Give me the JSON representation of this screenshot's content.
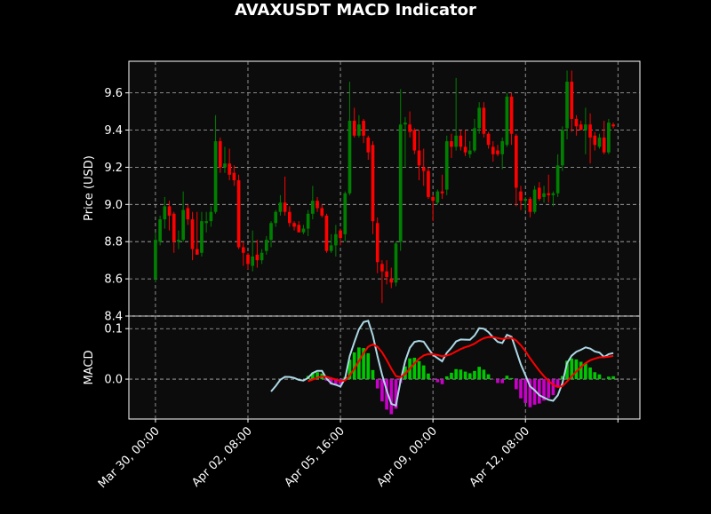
{
  "chart_data": [
    {
      "type": "candlestick",
      "title": "AVAXUSDT MACD Indicator",
      "ylabel": "Price (USD)",
      "ylim": [
        8.4,
        9.77
      ],
      "yticks": [
        "8.4",
        "8.6",
        "8.8",
        "9.0",
        "9.2",
        "9.4",
        "9.6"
      ],
      "grid": true,
      "colors": {
        "up": "#008000",
        "down": "#ff0000",
        "background": "#0c0c0c",
        "grid": "#b0b0b0"
      },
      "candles_columns": [
        "time",
        "open",
        "high",
        "low",
        "close"
      ],
      "candles": [
        [
          "03-30 00:00",
          8.6,
          8.85,
          8.58,
          8.81
        ],
        [
          "03-30 04:00",
          8.8,
          8.94,
          8.78,
          8.92
        ],
        [
          "03-30 08:00",
          8.92,
          9.04,
          8.87,
          8.99
        ],
        [
          "03-30 12:00",
          8.99,
          9.02,
          8.86,
          8.94
        ],
        [
          "03-30 16:00",
          8.95,
          8.96,
          8.74,
          8.8
        ],
        [
          "03-30 20:00",
          8.8,
          8.86,
          8.76,
          8.81
        ],
        [
          "03-31 00:00",
          8.81,
          9.07,
          8.8,
          8.97
        ],
        [
          "03-31 04:00",
          8.98,
          9.0,
          8.89,
          8.92
        ],
        [
          "03-31 08:00",
          8.92,
          8.96,
          8.7,
          8.76
        ],
        [
          "03-31 12:00",
          8.76,
          8.96,
          8.73,
          8.73
        ],
        [
          "03-31 16:00",
          8.74,
          8.96,
          8.72,
          8.91
        ],
        [
          "03-31 20:00",
          8.9,
          8.96,
          8.85,
          8.91
        ],
        [
          "04-01 00:00",
          8.91,
          8.99,
          8.88,
          8.96
        ],
        [
          "04-01 04:00",
          8.96,
          9.48,
          8.95,
          9.34
        ],
        [
          "04-01 08:00",
          9.34,
          9.36,
          9.17,
          9.2
        ],
        [
          "04-01 12:00",
          9.2,
          9.31,
          9.17,
          9.22
        ],
        [
          "04-01 16:00",
          9.22,
          9.3,
          9.13,
          9.16
        ],
        [
          "04-01 20:00",
          9.17,
          9.21,
          9.1,
          9.13
        ],
        [
          "04-02 00:00",
          9.13,
          9.16,
          8.76,
          8.77
        ],
        [
          "04-02 04:00",
          8.77,
          8.8,
          8.67,
          8.74
        ],
        [
          "04-02 08:00",
          8.73,
          8.74,
          8.65,
          8.68
        ],
        [
          "04-02 12:00",
          8.67,
          8.86,
          8.64,
          8.72
        ],
        [
          "04-02 16:00",
          8.73,
          8.81,
          8.66,
          8.7
        ],
        [
          "04-02 20:00",
          8.7,
          8.76,
          8.68,
          8.74
        ],
        [
          "04-03 00:00",
          8.75,
          8.83,
          8.73,
          8.81
        ],
        [
          "04-03 04:00",
          8.81,
          8.91,
          8.77,
          8.9
        ],
        [
          "04-03 08:00",
          8.9,
          8.97,
          8.88,
          8.96
        ],
        [
          "04-03 12:00",
          8.96,
          9.05,
          8.94,
          9.01
        ],
        [
          "04-03 16:00",
          9.01,
          9.15,
          8.94,
          8.96
        ],
        [
          "04-03 20:00",
          8.96,
          8.99,
          8.88,
          8.9
        ],
        [
          "04-04 00:00",
          8.9,
          8.91,
          8.86,
          8.88
        ],
        [
          "04-04 04:00",
          8.89,
          8.91,
          8.85,
          8.85
        ],
        [
          "04-04 08:00",
          8.85,
          8.89,
          8.84,
          8.87
        ],
        [
          "04-04 12:00",
          8.87,
          8.97,
          8.83,
          8.95
        ],
        [
          "04-04 16:00",
          8.95,
          9.1,
          8.92,
          9.02
        ],
        [
          "04-04 20:00",
          9.02,
          9.04,
          8.96,
          8.98
        ],
        [
          "04-05 00:00",
          8.98,
          9.0,
          8.93,
          8.94
        ],
        [
          "04-05 04:00",
          8.94,
          8.95,
          8.74,
          8.75
        ],
        [
          "04-05 08:00",
          8.75,
          8.84,
          8.74,
          8.78
        ],
        [
          "04-05 12:00",
          8.78,
          8.89,
          8.72,
          8.84
        ],
        [
          "04-05 16:00",
          8.86,
          8.87,
          8.78,
          8.82
        ],
        [
          "04-05 20:00",
          8.84,
          9.07,
          8.8,
          9.06
        ],
        [
          "04-06 00:00",
          9.06,
          9.66,
          9.05,
          9.45
        ],
        [
          "04-06 04:00",
          9.45,
          9.52,
          9.36,
          9.37
        ],
        [
          "04-06 08:00",
          9.37,
          9.48,
          9.36,
          9.43
        ],
        [
          "04-06 12:00",
          9.45,
          9.46,
          9.33,
          9.37
        ],
        [
          "04-06 16:00",
          9.36,
          9.37,
          9.24,
          9.28
        ],
        [
          "04-06 20:00",
          9.32,
          9.34,
          8.84,
          8.91
        ],
        [
          "04-07 00:00",
          8.9,
          8.93,
          8.63,
          8.69
        ],
        [
          "04-07 04:00",
          8.68,
          8.7,
          8.47,
          8.64
        ],
        [
          "04-07 08:00",
          8.64,
          8.7,
          8.57,
          8.61
        ],
        [
          "04-07 12:00",
          8.6,
          8.66,
          8.55,
          8.58
        ],
        [
          "04-07 16:00",
          8.58,
          8.8,
          8.56,
          8.79
        ],
        [
          "04-07 20:00",
          8.8,
          9.62,
          8.75,
          9.43
        ],
        [
          "04-08 00:00",
          9.43,
          9.47,
          9.2,
          9.44
        ],
        [
          "04-08 04:00",
          9.43,
          9.5,
          9.36,
          9.39
        ],
        [
          "04-08 08:00",
          9.4,
          9.41,
          9.27,
          9.29
        ],
        [
          "04-08 12:00",
          9.29,
          9.4,
          9.13,
          9.21
        ],
        [
          "04-08 16:00",
          9.2,
          9.3,
          9.1,
          9.18
        ],
        [
          "04-08 20:00",
          9.18,
          9.2,
          9.03,
          9.04
        ],
        [
          "04-09 00:00",
          9.04,
          9.05,
          8.91,
          9.02
        ],
        [
          "04-09 04:00",
          9.01,
          9.08,
          9.0,
          9.07
        ],
        [
          "04-09 08:00",
          9.07,
          9.16,
          9.03,
          9.06
        ],
        [
          "04-09 12:00",
          9.08,
          9.37,
          9.05,
          9.34
        ],
        [
          "04-09 16:00",
          9.34,
          9.38,
          9.25,
          9.31
        ],
        [
          "04-09 20:00",
          9.31,
          9.68,
          9.29,
          9.37
        ],
        [
          "04-10 00:00",
          9.37,
          9.4,
          9.29,
          9.31
        ],
        [
          "04-10 04:00",
          9.31,
          9.4,
          9.26,
          9.28
        ],
        [
          "04-10 08:00",
          9.27,
          9.34,
          9.25,
          9.29
        ],
        [
          "04-10 12:00",
          9.29,
          9.46,
          9.28,
          9.41
        ],
        [
          "04-10 16:00",
          9.41,
          9.55,
          9.38,
          9.52
        ],
        [
          "04-10 20:00",
          9.52,
          9.55,
          9.36,
          9.38
        ],
        [
          "04-11 00:00",
          9.38,
          9.39,
          9.3,
          9.32
        ],
        [
          "04-11 04:00",
          9.31,
          9.34,
          9.23,
          9.27
        ],
        [
          "04-11 08:00",
          9.29,
          9.32,
          9.26,
          9.27
        ],
        [
          "04-11 12:00",
          9.27,
          9.36,
          9.19,
          9.34
        ],
        [
          "04-11 16:00",
          9.32,
          9.6,
          9.31,
          9.58
        ],
        [
          "04-11 20:00",
          9.58,
          9.6,
          9.32,
          9.38
        ],
        [
          "04-12 00:00",
          9.37,
          9.38,
          8.99,
          9.09
        ],
        [
          "04-12 04:00",
          9.07,
          9.1,
          8.97,
          9.02
        ],
        [
          "04-12 08:00",
          9.02,
          9.04,
          8.97,
          9.03
        ],
        [
          "04-12 12:00",
          9.03,
          9.04,
          8.93,
          8.96
        ],
        [
          "04-12 16:00",
          8.96,
          9.1,
          8.95,
          9.08
        ],
        [
          "04-12 20:00",
          9.09,
          9.12,
          9.02,
          9.03
        ],
        [
          "04-13 00:00",
          9.04,
          9.1,
          9.01,
          9.06
        ],
        [
          "04-13 04:00",
          9.06,
          9.16,
          9.01,
          9.05
        ],
        [
          "04-13 08:00",
          9.05,
          9.07,
          8.99,
          9.06
        ],
        [
          "04-13 12:00",
          9.06,
          9.27,
          9.04,
          9.21
        ],
        [
          "04-13 16:00",
          9.21,
          9.42,
          9.18,
          9.4
        ],
        [
          "04-13 20:00",
          9.41,
          9.72,
          9.35,
          9.66
        ],
        [
          "04-14 00:00",
          9.66,
          9.72,
          9.39,
          9.46
        ],
        [
          "04-14 04:00",
          9.46,
          9.48,
          9.37,
          9.42
        ],
        [
          "04-14 08:00",
          9.43,
          9.45,
          9.4,
          9.4
        ],
        [
          "04-14 12:00",
          9.4,
          9.52,
          9.27,
          9.43
        ],
        [
          "04-14 16:00",
          9.43,
          9.49,
          9.22,
          9.36
        ],
        [
          "04-14 20:00",
          9.37,
          9.39,
          9.29,
          9.32
        ],
        [
          "04-15 00:00",
          9.31,
          9.38,
          9.3,
          9.36
        ],
        [
          "04-15 04:00",
          9.36,
          9.45,
          9.27,
          9.28
        ],
        [
          "04-15 08:00",
          9.28,
          9.46,
          9.27,
          9.44
        ],
        [
          "04-15 12:00",
          9.43,
          9.44,
          9.41,
          9.42
        ]
      ]
    },
    {
      "type": "line+bar",
      "ylabel": "MACD",
      "ylim": [
        -0.079,
        0.125
      ],
      "yticks": [
        "0.0",
        "0.1"
      ],
      "grid": true,
      "series": [
        {
          "role": "macd",
          "color": "#add8e6"
        },
        {
          "role": "signal",
          "color": "#ff0000"
        },
        {
          "role": "histogram",
          "color_positive": "#00c800",
          "color_negative": "#c800c8"
        }
      ]
    }
  ],
  "xaxis": {
    "xlim": [
      "03-29 01:00",
      "04-16 11:00"
    ],
    "ticks": [
      {
        "t": "03-30 00:00",
        "label": "Mar 30, 00:00"
      },
      {
        "t": "04-02 08:00",
        "label": "Apr 02, 08:00"
      },
      {
        "t": "04-05 16:00",
        "label": "Apr 05, 16:00"
      },
      {
        "t": "04-09 00:00",
        "label": "Apr 09, 00:00"
      },
      {
        "t": "04-12 08:00",
        "label": "Apr 12, 08:00"
      },
      {
        "t": "04-15 16:00",
        "label": ""
      }
    ]
  }
}
